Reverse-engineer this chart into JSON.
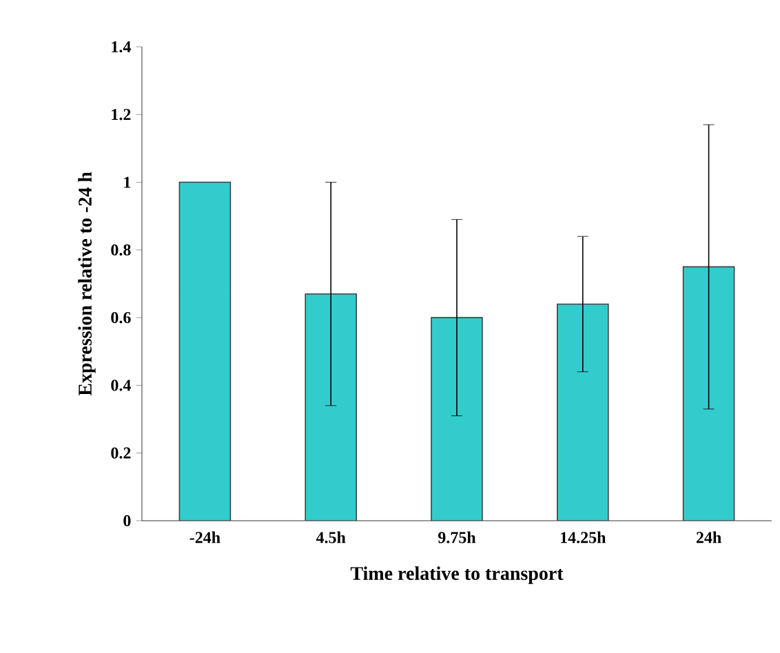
{
  "chart_data": {
    "type": "bar",
    "xlabel": "Time relative to transport",
    "ylabel": "Expression relative to -24 h",
    "categories": [
      "-24h",
      "4.5h",
      "9.75h",
      "14.25h",
      "24h"
    ],
    "values": [
      1.0,
      0.67,
      0.6,
      0.64,
      0.75
    ],
    "errors": [
      null,
      0.33,
      0.29,
      0.2,
      0.42
    ],
    "color": "#33cccc",
    "ylim": [
      0,
      1.4
    ],
    "yticks": [
      0,
      0.2,
      0.4,
      0.6,
      0.8,
      1,
      1.2,
      1.4
    ],
    "grid": false
  }
}
